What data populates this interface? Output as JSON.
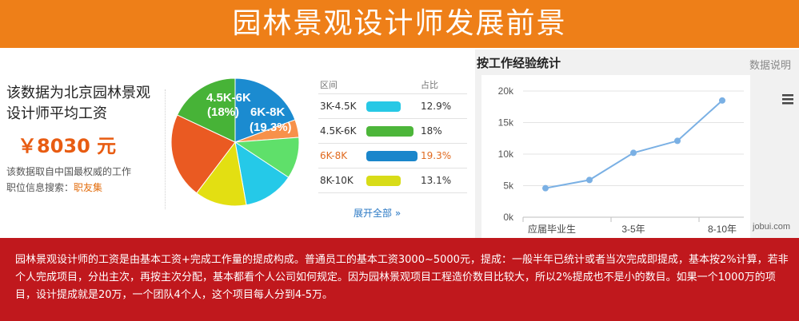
{
  "header": {
    "title": "园林景观设计师发展前景"
  },
  "left": {
    "title": "该数据为北京园林景观设计师平均工资",
    "salary": "￥8030 元",
    "note": "该数据取自中国最权威的工作",
    "search_label": "职位信息搜索：",
    "search_link": "职友集"
  },
  "pie": {
    "label_45_6": "4.5K-6K",
    "label_45_6_pct": "(18%)",
    "label_6_8": "6K-8K",
    "label_6_8_pct": "(19.3%)",
    "slices": [
      {
        "pct": 19.3,
        "color": "#1b8bd0"
      },
      {
        "pct": 4.5,
        "color": "#f7914a"
      },
      {
        "pct": 10.5,
        "color": "#5fe06a"
      },
      {
        "pct": 12.9,
        "color": "#25c9e8"
      },
      {
        "pct": 13.1,
        "color": "#e3df12"
      },
      {
        "pct": 21.7,
        "color": "#ea5a22"
      },
      {
        "pct": 18.0,
        "color": "#47b337"
      }
    ]
  },
  "table": {
    "headers": [
      "区间",
      "占比"
    ],
    "rows": [
      {
        "range": "3K-4.5K",
        "pct": "12.9%",
        "color": "#27c8e5",
        "value": 12.9
      },
      {
        "range": "4.5K-6K",
        "pct": "18%",
        "color": "#4db63a",
        "value": 18
      },
      {
        "range": "6K-8K",
        "pct": "19.3%",
        "color": "#1a86cb",
        "value": 19.3
      },
      {
        "range": "8K-10K",
        "pct": "13.1%",
        "color": "#d8dc18",
        "value": 13.1
      }
    ],
    "expand": "展开全部 »"
  },
  "experience": {
    "title": "按工作经验统计",
    "note": "数据说明",
    "menu_icon": "menu-icon",
    "watermark": "jobui.com"
  },
  "chart_data": {
    "type": "line",
    "title": "按工作经验统计",
    "categories": [
      "应届毕业生",
      "",
      "3-5年",
      "",
      "8-10年"
    ],
    "values": [
      4600,
      5900,
      10200,
      12100,
      18500
    ],
    "y_ticks": [
      "0k",
      "5k",
      "10k",
      "15k",
      "20k"
    ],
    "ylim": [
      0,
      20000
    ],
    "grid": true,
    "color": "#7ab0e4"
  },
  "footer": {
    "text": "园林景观设计师的工资是由基本工资+完成工作量的提成构成。普通员工的基本工资3000~5000元，提成：一般半年已统计或者当次完成即提成，基本按2%计算，若非个人完成项目，分出主次，再按主次分配，基本都看个人公司如何规定。因为园林景观项目工程造价数目比较大，所以2%提成也不是小的数目。如果一个1000万的项目，设计提成就是20万，一个团队4个人，这个项目每人分到4-5万。"
  }
}
